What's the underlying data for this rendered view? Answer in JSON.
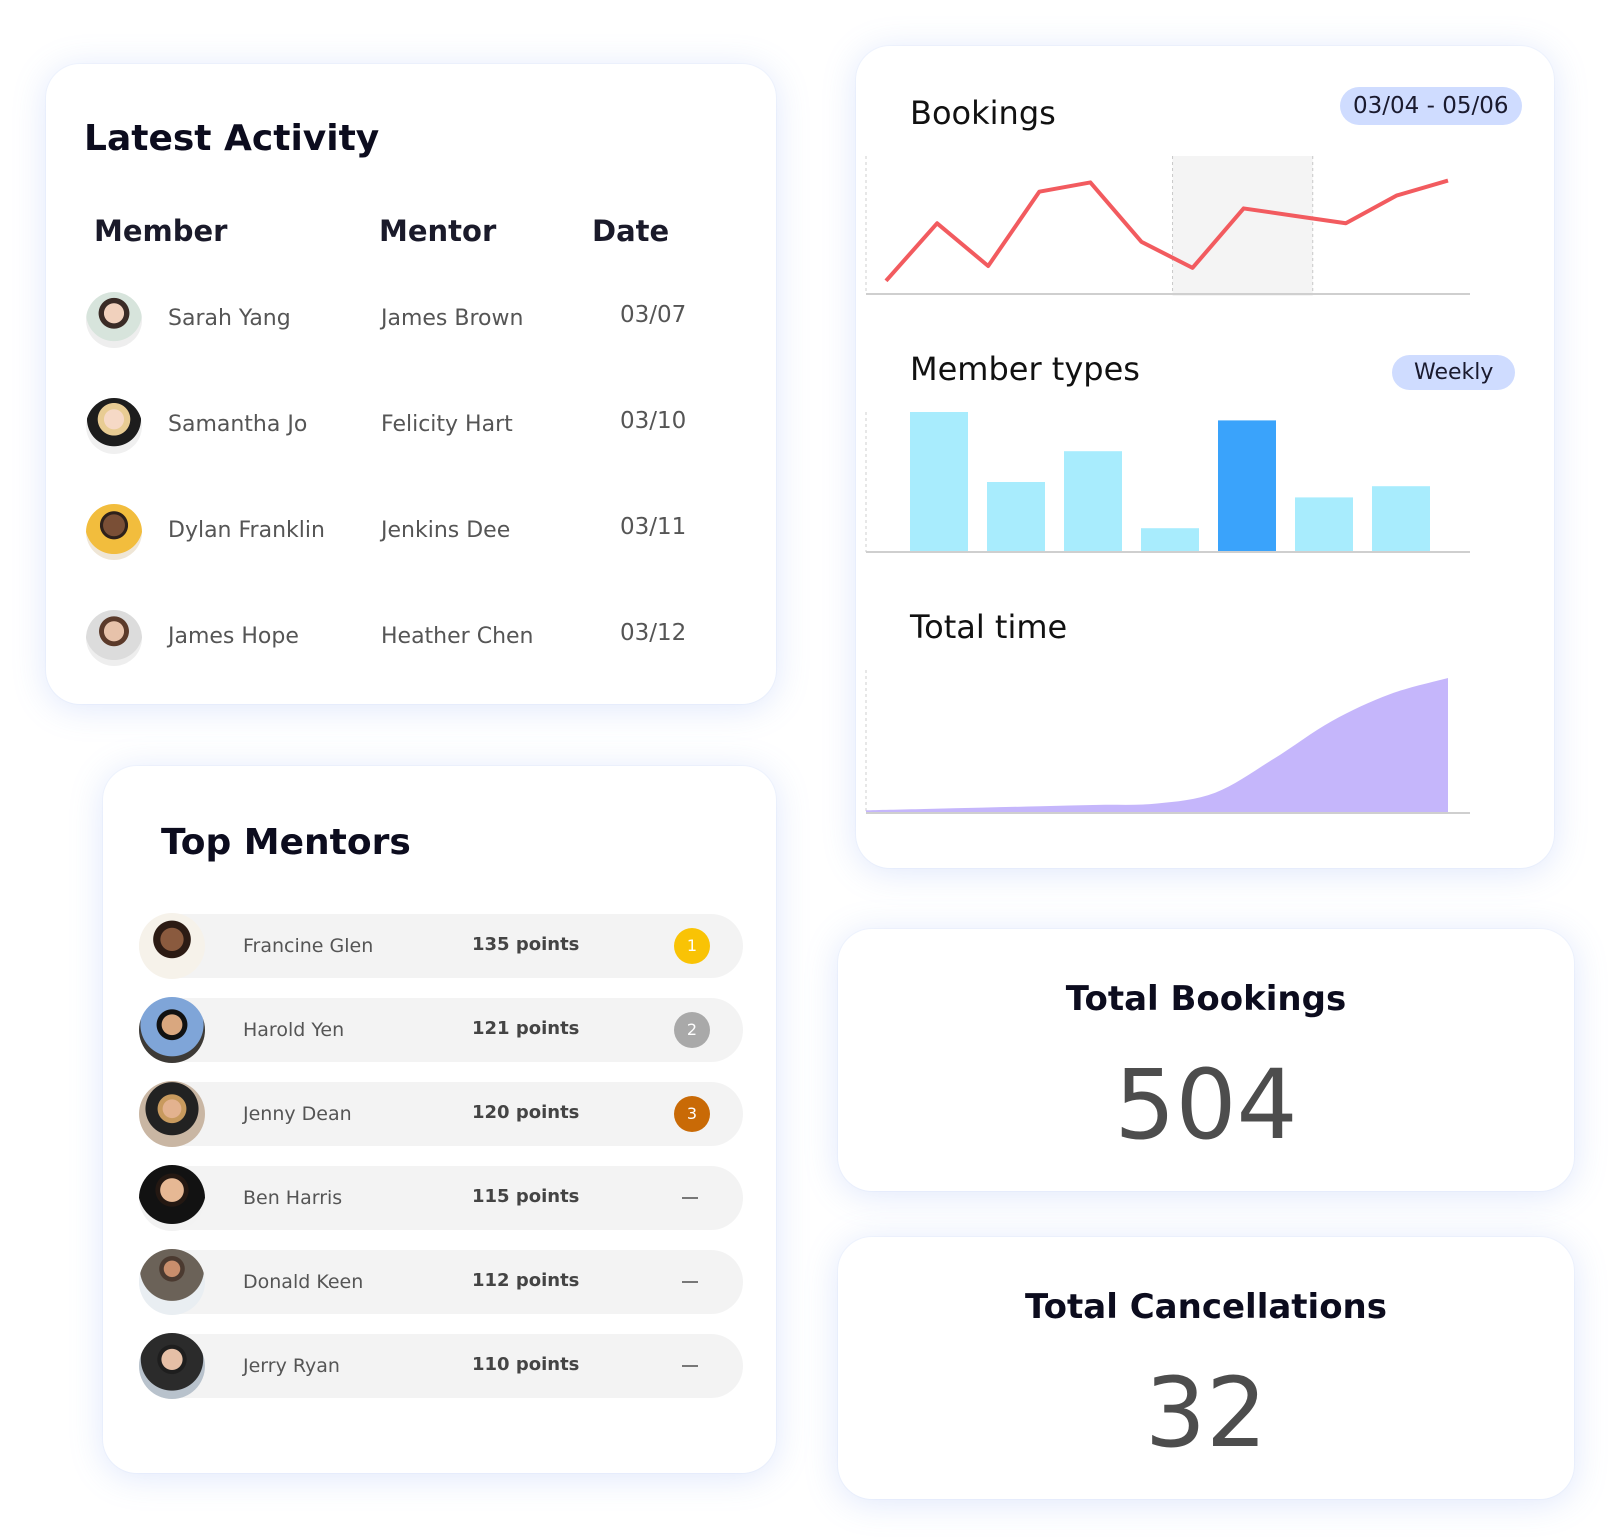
{
  "latest_activity": {
    "title": "Latest Activity",
    "headers": {
      "member": "Member",
      "mentor": "Mentor",
      "date": "Date"
    },
    "rows": [
      {
        "member": "Sarah Yang",
        "mentor": "James Brown",
        "date": "03/07"
      },
      {
        "member": "Samantha Jo",
        "mentor": "Felicity Hart",
        "date": "03/10"
      },
      {
        "member": "Dylan Franklin",
        "mentor": "Jenkins Dee",
        "date": "03/11"
      },
      {
        "member": "James Hope",
        "mentor": "Heather Chen",
        "date": "03/12"
      }
    ]
  },
  "top_mentors": {
    "title": "Top Mentors",
    "rows": [
      {
        "name": "Francine Glen",
        "points": "135 points",
        "rank": "1",
        "rank_color": "#f9c305"
      },
      {
        "name": "Harold Yen",
        "points": "121 points",
        "rank": "2",
        "rank_color": "#a9a9a9"
      },
      {
        "name": "Jenny Dean",
        "points": "120 points",
        "rank": "3",
        "rank_color": "#c96a06"
      },
      {
        "name": "Ben Harris",
        "points": "115 points",
        "rank": ""
      },
      {
        "name": "Donald Keen",
        "points": "112 points",
        "rank": ""
      },
      {
        "name": "Jerry Ryan",
        "points": "110 points",
        "rank": ""
      }
    ]
  },
  "charts": {
    "bookings": {
      "title": "Bookings",
      "range": "03/04 - 05/06"
    },
    "member_types": {
      "title": "Member types",
      "period": "Weekly"
    },
    "total_time": {
      "title": "Total time"
    }
  },
  "chart_data": [
    {
      "type": "line",
      "x": [
        1,
        2,
        3,
        4,
        5,
        6,
        7,
        8,
        9,
        10,
        11,
        12
      ],
      "values": [
        6,
        37,
        14,
        54,
        59,
        27,
        13,
        45,
        41,
        37,
        52,
        60
      ],
      "ylim": [
        0,
        70
      ],
      "highlight_x_range": [
        7,
        9
      ],
      "color": "#f25b5f"
    },
    {
      "type": "bar",
      "values": [
        100,
        50,
        72,
        17,
        94,
        39,
        47
      ],
      "ylim": [
        0,
        100
      ],
      "highlight_index": 4,
      "color": "#a8ecfd",
      "highlight_color": "#3aa3fb"
    },
    {
      "type": "area",
      "x": [
        0,
        10,
        20,
        30,
        40,
        50,
        60,
        70,
        80,
        90,
        100
      ],
      "values": [
        2,
        3,
        4,
        5,
        6,
        7,
        15,
        40,
        68,
        88,
        100
      ],
      "ylim": [
        0,
        100
      ],
      "color": "#c5b6fb"
    }
  ],
  "stats": {
    "total_bookings": {
      "label": "Total Bookings",
      "value": "504"
    },
    "total_cancellations": {
      "label": "Total Cancellations",
      "value": "32"
    }
  },
  "colors": {
    "accent": "#cfdcff",
    "card_shadow": "#6e91eb"
  }
}
